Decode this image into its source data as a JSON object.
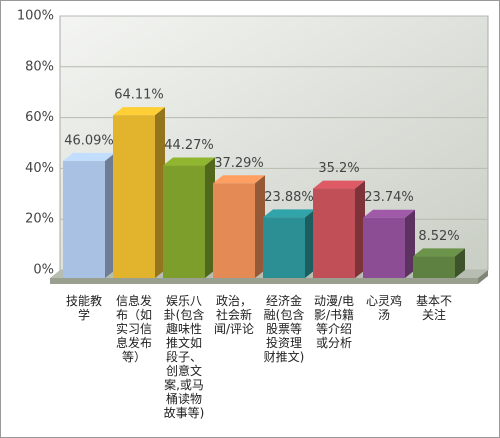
{
  "chart_data": {
    "type": "bar3d",
    "categories": [
      "技能教学",
      "信息发布（如实习信息发布等）",
      "娱乐八卦(包含趣味性推文如段子、创意文案,或马桶读物故事等)",
      "政治，社会新闻/评论",
      "经济金融(包含股票等投资理财推文)",
      "动漫/电影/书籍等介绍或分析",
      "心灵鸡汤",
      "基本不关注"
    ],
    "values": [
      46.09,
      64.11,
      44.27,
      37.29,
      23.88,
      35.2,
      23.74,
      8.52
    ],
    "value_labels": [
      "46.09%",
      "64.11%",
      "44.27%",
      "37.29%",
      "23.88%",
      "35.2%",
      "23.74%",
      "8.52%"
    ],
    "colors": [
      "#a9c1e2",
      "#e2b42e",
      "#7d9e2a",
      "#e48a55",
      "#2b8f94",
      "#c14f58",
      "#8c4d94",
      "#5e8040"
    ],
    "ylim": [
      0,
      100
    ],
    "yticks": [
      {
        "value": 0,
        "label": "0%"
      },
      {
        "value": 20,
        "label": "20%"
      },
      {
        "value": 40,
        "label": "40%"
      },
      {
        "value": 60,
        "label": "60%"
      },
      {
        "value": 80,
        "label": "80%"
      },
      {
        "value": 100,
        "label": "100%"
      }
    ],
    "grid": true
  }
}
